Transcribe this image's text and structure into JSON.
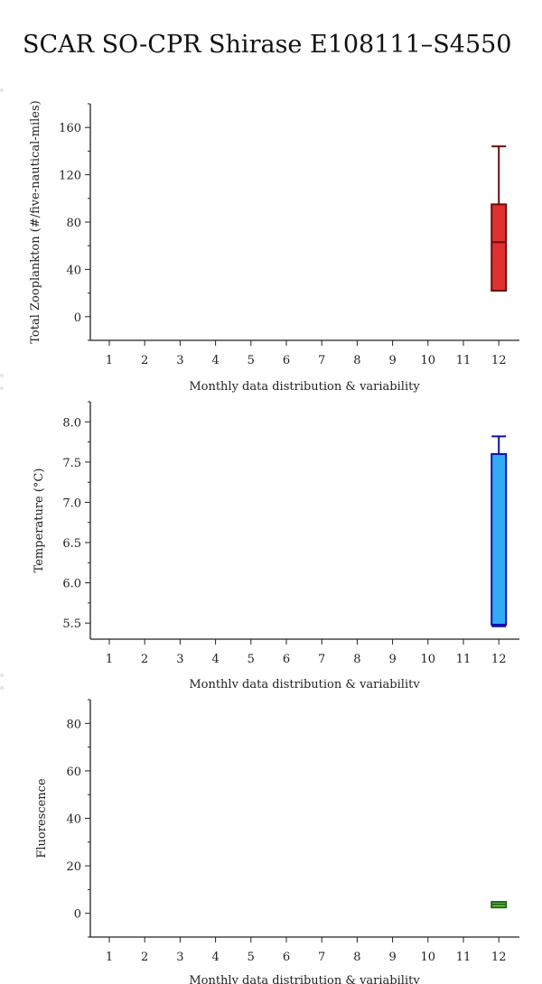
{
  "title": "SCAR SO-CPR Shirase E108111–S4550",
  "chart_data": [
    {
      "type": "box",
      "ylabel": "Total Zooplankton (#/five-nautical-miles)",
      "xlabel": "Monthly data distribution & variability",
      "categories": [
        "1",
        "2",
        "3",
        "4",
        "5",
        "6",
        "7",
        "8",
        "9",
        "10",
        "11",
        "12"
      ],
      "yticks": [
        0,
        40,
        80,
        120,
        160
      ],
      "yticklabels": [
        "0",
        "40",
        "80",
        "120",
        "160"
      ],
      "ylim": [
        -20,
        180
      ],
      "boxes": [
        {
          "category": "12",
          "min": 22,
          "q1": 22,
          "median": 63,
          "q3": 95,
          "max": 144
        }
      ],
      "colors": {
        "fill": "#e03030",
        "stroke": "#6b0e0e"
      }
    },
    {
      "type": "box",
      "ylabel": "Temperature (°C)",
      "xlabel": "Monthly data distribution & variability",
      "categories": [
        "1",
        "2",
        "3",
        "4",
        "5",
        "6",
        "7",
        "8",
        "9",
        "10",
        "11",
        "12"
      ],
      "yticks": [
        5.5,
        6.0,
        6.5,
        7.0,
        7.5,
        8.0
      ],
      "yticklabels": [
        "5.5",
        "6.0",
        "6.5",
        "7.0",
        "7.5",
        "8.0"
      ],
      "ylim": [
        5.3,
        8.25
      ],
      "boxes": [
        {
          "category": "12",
          "min": 5.46,
          "q1": 5.48,
          "median": 5.48,
          "q3": 7.6,
          "max": 7.82
        }
      ],
      "colors": {
        "fill": "#33aaf5",
        "stroke": "#1010aa"
      }
    },
    {
      "type": "box",
      "ylabel": "Fluorescence",
      "xlabel": "Monthly data distribution & variability",
      "categories": [
        "1",
        "2",
        "3",
        "4",
        "5",
        "6",
        "7",
        "8",
        "9",
        "10",
        "11",
        "12"
      ],
      "yticks": [
        0,
        20,
        40,
        60,
        80
      ],
      "yticklabels": [
        "0",
        "20",
        "40",
        "60",
        "80"
      ],
      "ylim": [
        -10,
        90
      ],
      "boxes": [
        {
          "category": "12",
          "min": 2.5,
          "q1": 2.5,
          "median": 3.8,
          "q3": 4.8,
          "max": 4.8
        }
      ],
      "colors": {
        "fill": "#8ccf3a",
        "stroke": "#1b6b1b"
      }
    }
  ]
}
